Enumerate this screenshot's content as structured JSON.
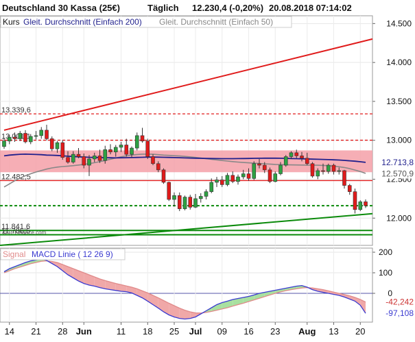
{
  "header": {
    "title": "Deutschland 30 Kassa (25€)",
    "period": "Täglich",
    "quote": "12.230,4 (-0,20%)",
    "datetime": "20.08.2018 07:14:02"
  },
  "legend": {
    "kurs": "Kurs",
    "ma200": "Gleit. Durchschnitt (Einfach 200)",
    "ma50": "Gleit. Durchschnitt (Einfach 50)"
  },
  "watermark": "© IT-Finance.com",
  "macd_legend": {
    "signal": "Signal",
    "macd": "MACD Linie ( 12 26 9)"
  },
  "colors": {
    "up_candle": "#2ea043",
    "down_candle": "#e01b1b",
    "ma200": "#1f1f8c",
    "ma50": "#888888",
    "channel": "#e01b1b",
    "support": "#0a8a0a",
    "band": "#f5a0a8",
    "macd_line": "#3a3ad0",
    "signal_line": "#e08a8a"
  },
  "chart_data": [
    {
      "type": "candlestick",
      "ylim": [
        11650,
        14600
      ],
      "y_ticks": [
        14500,
        14000,
        13500,
        13000,
        12500,
        12000
      ],
      "y_tick_labels": [
        "14.500",
        "14.000",
        "13.500",
        "13.000",
        "12.500",
        "12.000"
      ],
      "x_ticks": [
        {
          "day": 1,
          "label": "14"
        },
        {
          "day": 6,
          "label": "21"
        },
        {
          "day": 11,
          "label": "28"
        },
        {
          "day": 15,
          "label": "Jun"
        },
        {
          "day": 22,
          "label": "11"
        },
        {
          "day": 27,
          "label": "18"
        },
        {
          "day": 32,
          "label": "25"
        },
        {
          "day": 36,
          "label": "Jul"
        },
        {
          "day": 41,
          "label": "09"
        },
        {
          "day": 46,
          "label": "16"
        },
        {
          "day": 51,
          "label": "23"
        },
        {
          "day": 57,
          "label": "Aug"
        },
        {
          "day": 62,
          "label": "13"
        },
        {
          "day": 67,
          "label": "20"
        }
      ],
      "candles": [
        {
          "o": 12920,
          "h": 13030,
          "l": 12890,
          "c": 12990
        },
        {
          "o": 12990,
          "h": 13070,
          "l": 12950,
          "c": 13040
        },
        {
          "o": 13040,
          "h": 13100,
          "l": 12980,
          "c": 13020
        },
        {
          "o": 13020,
          "h": 13120,
          "l": 12990,
          "c": 13090
        },
        {
          "o": 13090,
          "h": 13130,
          "l": 12960,
          "c": 12980
        },
        {
          "o": 12980,
          "h": 13080,
          "l": 12950,
          "c": 13050
        },
        {
          "o": 13050,
          "h": 13120,
          "l": 13010,
          "c": 13060
        },
        {
          "o": 13060,
          "h": 13170,
          "l": 13020,
          "c": 13130
        },
        {
          "o": 13130,
          "h": 13200,
          "l": 13000,
          "c": 13020
        },
        {
          "o": 13020,
          "h": 13050,
          "l": 12860,
          "c": 12890
        },
        {
          "o": 12890,
          "h": 12990,
          "l": 12840,
          "c": 12970
        },
        {
          "o": 12970,
          "h": 13000,
          "l": 12750,
          "c": 12780
        },
        {
          "o": 12780,
          "h": 12860,
          "l": 12700,
          "c": 12720
        },
        {
          "o": 12720,
          "h": 12860,
          "l": 12700,
          "c": 12820
        },
        {
          "o": 12820,
          "h": 12900,
          "l": 12770,
          "c": 12790
        },
        {
          "o": 12790,
          "h": 12830,
          "l": 12640,
          "c": 12680
        },
        {
          "o": 12680,
          "h": 12810,
          "l": 12540,
          "c": 12760
        },
        {
          "o": 12760,
          "h": 12840,
          "l": 12720,
          "c": 12800
        },
        {
          "o": 12800,
          "h": 12880,
          "l": 12710,
          "c": 12740
        },
        {
          "o": 12740,
          "h": 12930,
          "l": 12700,
          "c": 12880
        },
        {
          "o": 12880,
          "h": 12950,
          "l": 12820,
          "c": 12850
        },
        {
          "o": 12850,
          "h": 12940,
          "l": 12790,
          "c": 12910
        },
        {
          "o": 12910,
          "h": 12980,
          "l": 12850,
          "c": 12940
        },
        {
          "o": 12940,
          "h": 13020,
          "l": 12790,
          "c": 12820
        },
        {
          "o": 12820,
          "h": 12920,
          "l": 12780,
          "c": 12900
        },
        {
          "o": 12900,
          "h": 13100,
          "l": 12870,
          "c": 13060
        },
        {
          "o": 13060,
          "h": 13160,
          "l": 12970,
          "c": 12990
        },
        {
          "o": 12990,
          "h": 13020,
          "l": 12760,
          "c": 12790
        },
        {
          "o": 12790,
          "h": 12820,
          "l": 12680,
          "c": 12700
        },
        {
          "o": 12700,
          "h": 12730,
          "l": 12590,
          "c": 12620
        },
        {
          "o": 12620,
          "h": 12640,
          "l": 12440,
          "c": 12460
        },
        {
          "o": 12460,
          "h": 12470,
          "l": 12220,
          "c": 12240
        },
        {
          "o": 12240,
          "h": 12330,
          "l": 12150,
          "c": 12290
        },
        {
          "o": 12290,
          "h": 12330,
          "l": 12090,
          "c": 12120
        },
        {
          "o": 12120,
          "h": 12290,
          "l": 12100,
          "c": 12270
        },
        {
          "o": 12270,
          "h": 12300,
          "l": 12110,
          "c": 12140
        },
        {
          "o": 12140,
          "h": 12310,
          "l": 12130,
          "c": 12250
        },
        {
          "o": 12250,
          "h": 12320,
          "l": 12200,
          "c": 12280
        },
        {
          "o": 12280,
          "h": 12370,
          "l": 12240,
          "c": 12340
        },
        {
          "o": 12340,
          "h": 12510,
          "l": 12320,
          "c": 12460
        },
        {
          "o": 12460,
          "h": 12530,
          "l": 12400,
          "c": 12490
        },
        {
          "o": 12490,
          "h": 12540,
          "l": 12400,
          "c": 12430
        },
        {
          "o": 12430,
          "h": 12580,
          "l": 12410,
          "c": 12550
        },
        {
          "o": 12550,
          "h": 12600,
          "l": 12450,
          "c": 12470
        },
        {
          "o": 12470,
          "h": 12560,
          "l": 12430,
          "c": 12530
        },
        {
          "o": 12530,
          "h": 12620,
          "l": 12500,
          "c": 12570
        },
        {
          "o": 12570,
          "h": 12640,
          "l": 12480,
          "c": 12510
        },
        {
          "o": 12510,
          "h": 12730,
          "l": 12490,
          "c": 12700
        },
        {
          "o": 12700,
          "h": 12760,
          "l": 12640,
          "c": 12680
        },
        {
          "o": 12680,
          "h": 12720,
          "l": 12580,
          "c": 12620
        },
        {
          "o": 12620,
          "h": 12650,
          "l": 12450,
          "c": 12470
        },
        {
          "o": 12470,
          "h": 12600,
          "l": 12460,
          "c": 12570
        },
        {
          "o": 12570,
          "h": 12720,
          "l": 12550,
          "c": 12680
        },
        {
          "o": 12680,
          "h": 12810,
          "l": 12660,
          "c": 12790
        },
        {
          "o": 12790,
          "h": 12860,
          "l": 12760,
          "c": 12840
        },
        {
          "o": 12840,
          "h": 12880,
          "l": 12770,
          "c": 12800
        },
        {
          "o": 12800,
          "h": 12850,
          "l": 12730,
          "c": 12770
        },
        {
          "o": 12770,
          "h": 12840,
          "l": 12680,
          "c": 12700
        },
        {
          "o": 12700,
          "h": 12720,
          "l": 12520,
          "c": 12540
        },
        {
          "o": 12540,
          "h": 12640,
          "l": 12500,
          "c": 12610
        },
        {
          "o": 12610,
          "h": 12700,
          "l": 12560,
          "c": 12600
        },
        {
          "o": 12600,
          "h": 12700,
          "l": 12570,
          "c": 12680
        },
        {
          "o": 12680,
          "h": 12700,
          "l": 12560,
          "c": 12600
        },
        {
          "o": 12600,
          "h": 12650,
          "l": 12560,
          "c": 12610
        },
        {
          "o": 12610,
          "h": 12620,
          "l": 12380,
          "c": 12420
        },
        {
          "o": 12420,
          "h": 12440,
          "l": 12300,
          "c": 12340
        },
        {
          "o": 12340,
          "h": 12380,
          "l": 12060,
          "c": 12110
        },
        {
          "o": 12110,
          "h": 12230,
          "l": 12090,
          "c": 12210
        },
        {
          "o": 12210,
          "h": 12240,
          "l": 12130,
          "c": 12160
        }
      ],
      "ma200": [
        12800,
        12810,
        12815,
        12820,
        12822,
        12820,
        12818,
        12815,
        12810,
        12808,
        12805,
        12800,
        12796,
        12792,
        12788,
        12785,
        12782,
        12780,
        12778,
        12776,
        12775,
        12774,
        12775,
        12776,
        12778,
        12780,
        12782,
        12784,
        12784,
        12783,
        12782,
        12780,
        12778,
        12776,
        12774,
        12772,
        12770,
        12768,
        12767,
        12766,
        12765,
        12764,
        12764,
        12764,
        12765,
        12766,
        12767,
        12768,
        12769,
        12770,
        12770,
        12770,
        12769,
        12768,
        12766,
        12764,
        12762,
        12760,
        12758,
        12756,
        12754,
        12752,
        12749,
        12746,
        12742,
        12737,
        12731,
        12724,
        12716
      ],
      "ma50": [
        12400,
        12440,
        12480,
        12515,
        12545,
        12570,
        12592,
        12612,
        12630,
        12645,
        12656,
        12663,
        12668,
        12674,
        12682,
        12690,
        12700,
        12712,
        12725,
        12740,
        12757,
        12773,
        12788,
        12800,
        12810,
        12818,
        12822,
        12822,
        12820,
        12815,
        12810,
        12806,
        12802,
        12798,
        12793,
        12787,
        12780,
        12772,
        12764,
        12756,
        12748,
        12740,
        12733,
        12726,
        12720,
        12715,
        12710,
        12706,
        12702,
        12698,
        12694,
        12690,
        12688,
        12686,
        12684,
        12683,
        12682,
        12681,
        12680,
        12679,
        12677,
        12674,
        12668,
        12660,
        12650,
        12636,
        12618,
        12598,
        12575
      ],
      "band": [
        12590,
        12870
      ],
      "channel_line": {
        "start_day": 0,
        "start_value": 13130,
        "end_day": 68,
        "end_value": 14280
      },
      "support_line": {
        "start_day": 0,
        "start_value": 11650,
        "end_day": 68,
        "end_value": 12050
      },
      "horizontal_lines": [
        {
          "value": 13339.6,
          "label": "13.339,6",
          "style": "dashed",
          "color": "red"
        },
        {
          "value": 13001.1,
          "label": "13.001,1",
          "style": "dashed",
          "color": "red"
        },
        {
          "value": 12482.5,
          "label": "12.482,5",
          "style": "solid",
          "color": "red"
        },
        {
          "value": 12160,
          "label": "",
          "style": "dashed",
          "color": "green"
        },
        {
          "value": 11841.6,
          "label": "11.841,6",
          "style": "solid",
          "color": "green"
        },
        {
          "value": 11786.5,
          "label": "11.786,5",
          "style": "solid",
          "color": "green"
        }
      ],
      "value_tags": [
        {
          "value": 12713.8,
          "label": "12.713,8",
          "color": "#1f1f8c"
        },
        {
          "value": 12570.9,
          "label": "12.570,9",
          "color": "#555555"
        }
      ]
    },
    {
      "type": "line",
      "ylim": [
        -140,
        220
      ],
      "y_ticks": [
        200,
        100,
        0
      ],
      "y_tick_labels": [
        "200",
        "100",
        "0"
      ],
      "zero_line": 0,
      "series": [
        {
          "name": "MACD Linie ( 12 26 9)",
          "values": [
            105,
            120,
            130,
            140,
            150,
            158,
            162,
            168,
            160,
            145,
            130,
            110,
            90,
            75,
            60,
            48,
            40,
            35,
            28,
            22,
            18,
            14,
            10,
            8,
            2,
            -10,
            -22,
            -38,
            -55,
            -72,
            -90,
            -105,
            -115,
            -122,
            -125,
            -122,
            -115,
            -100,
            -85,
            -70,
            -55,
            -45,
            -38,
            -30,
            -25,
            -20,
            -15,
            -8,
            0,
            5,
            10,
            15,
            20,
            25,
            30,
            35,
            38,
            30,
            18,
            10,
            5,
            0,
            -5,
            -10,
            -18,
            -28,
            -38,
            -58,
            -97.108
          ]
        },
        {
          "name": "Signal",
          "values": [
            100,
            110,
            120,
            128,
            136,
            144,
            150,
            156,
            158,
            155,
            150,
            140,
            130,
            120,
            110,
            100,
            90,
            80,
            70,
            62,
            55,
            48,
            42,
            36,
            30,
            22,
            12,
            2,
            -10,
            -22,
            -35,
            -48,
            -60,
            -72,
            -82,
            -90,
            -95,
            -96,
            -93,
            -88,
            -82,
            -76,
            -70,
            -62,
            -55,
            -48,
            -40,
            -32,
            -24,
            -16,
            -8,
            0,
            7,
            13,
            18,
            22,
            26,
            28,
            26,
            22,
            18,
            12,
            6,
            0,
            -6,
            -12,
            -20,
            -30,
            -42.242
          ]
        }
      ],
      "value_tags": [
        {
          "value": -42.242,
          "label": "-42,242",
          "color": "#cc3333"
        },
        {
          "value": -97.108,
          "label": "-97,108",
          "color": "#3a3ad0"
        }
      ]
    }
  ]
}
